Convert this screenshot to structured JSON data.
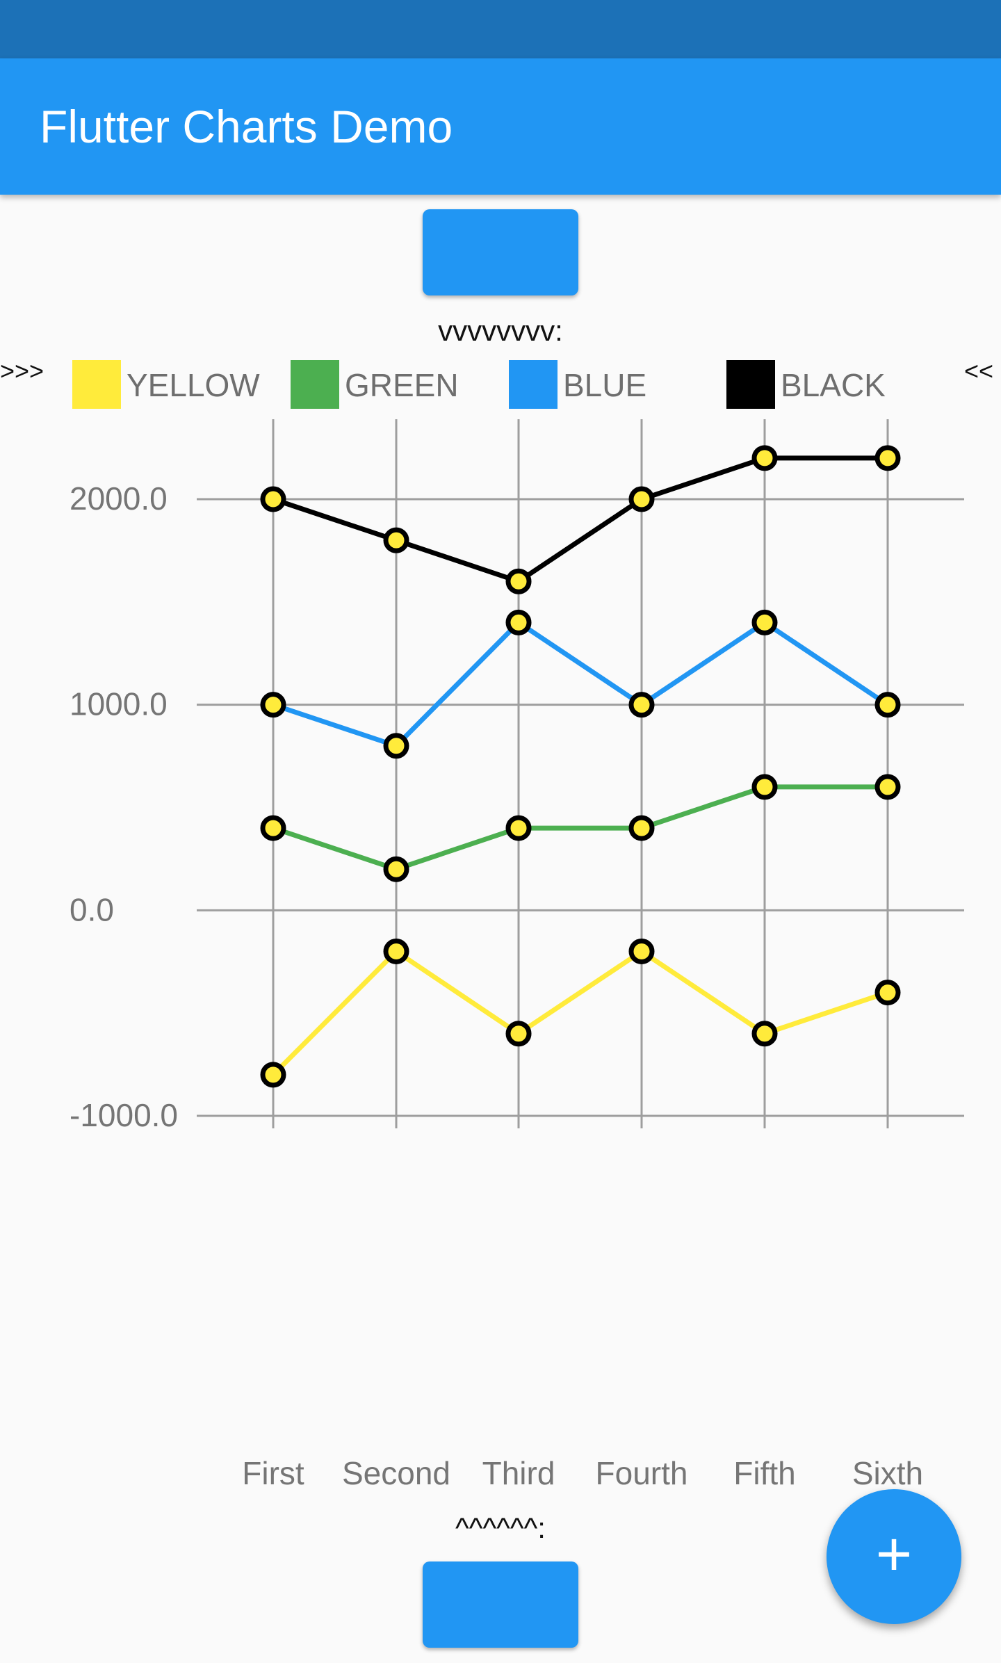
{
  "status_bar": {
    "color": "#1c71b7"
  },
  "app_bar": {
    "title": "Flutter Charts Demo",
    "color": "#2196f3"
  },
  "top_note": "vvvvvvvv:",
  "bottom_note": "^^^^^^:",
  "legend": {
    "left_marker": ">>>",
    "right_marker": "<<",
    "items": [
      {
        "label": "YELLOW",
        "color": "#ffeb3b"
      },
      {
        "label": "GREEN",
        "color": "#4caf50"
      },
      {
        "label": "BLUE",
        "color": "#2196f3"
      },
      {
        "label": "BLACK",
        "color": "#000000"
      }
    ]
  },
  "fab": {
    "icon": "plus-icon",
    "glyph": "+",
    "color": "#2196f3"
  },
  "chart_data": {
    "type": "line",
    "categories": [
      "First",
      "Second",
      "Third",
      "Fourth",
      "Fifth",
      "Sixth"
    ],
    "ytick_labels": [
      "2000.0",
      "1000.0",
      "0.0",
      "-1000.0"
    ],
    "yticks": [
      2000,
      1000,
      0,
      -1000
    ],
    "ylim": [
      -1000,
      2200
    ],
    "grid": true,
    "legend_position": "top",
    "point_marker": {
      "fill": "#ffeb3b",
      "stroke": "#000000"
    },
    "series": [
      {
        "name": "YELLOW",
        "color": "#ffeb3b",
        "values": [
          -800,
          -200,
          -600,
          -200,
          -600,
          -400
        ]
      },
      {
        "name": "GREEN",
        "color": "#4caf50",
        "values": [
          400,
          200,
          400,
          400,
          600,
          600
        ]
      },
      {
        "name": "BLUE",
        "color": "#2196f3",
        "values": [
          1000,
          800,
          1400,
          1000,
          1400,
          1000
        ]
      },
      {
        "name": "BLACK",
        "color": "#000000",
        "values": [
          2000,
          1800,
          1600,
          2000,
          2200,
          2200
        ]
      }
    ]
  }
}
